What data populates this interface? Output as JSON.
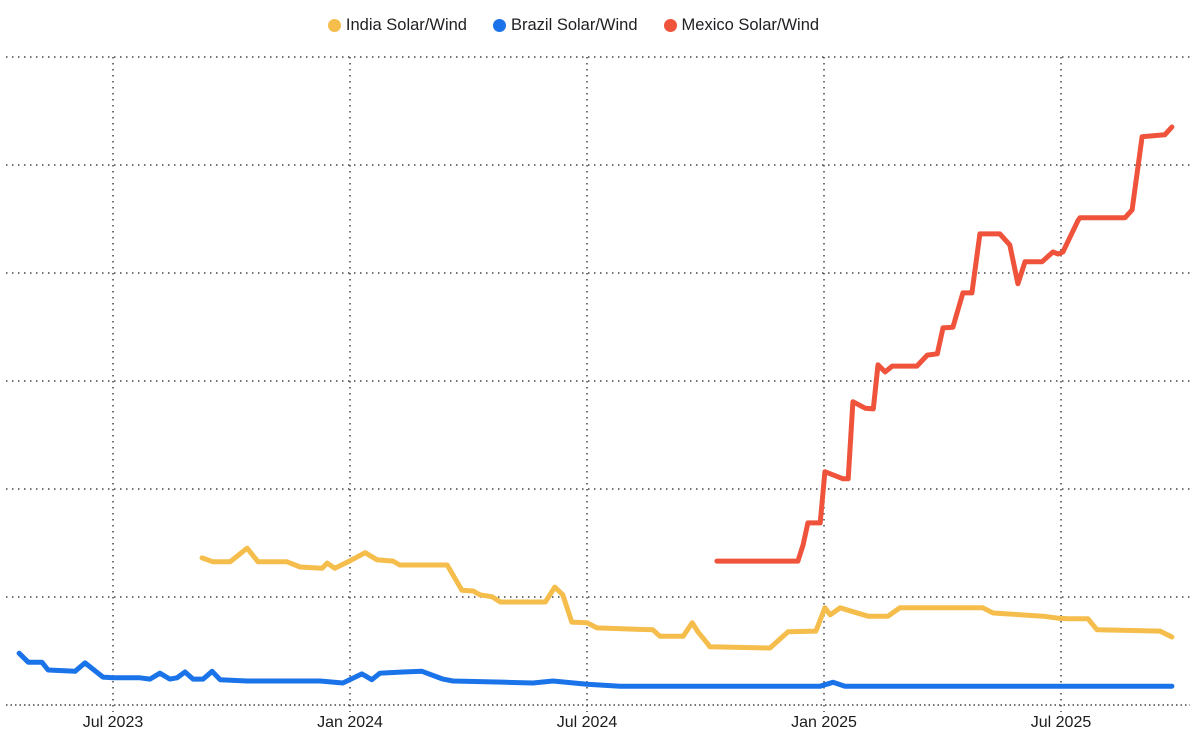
{
  "chart_data": {
    "type": "line",
    "title": "",
    "xlabel": "",
    "ylabel": "",
    "ylim": [
      0,
      100
    ],
    "y_axis_labels_visible": false,
    "grid": "dotted",
    "grid_color": "#474747",
    "tick_label_color": "#1c1c1c",
    "legend_position": "top-center",
    "x_ticks": [
      {
        "t": 2023.5,
        "label": "Jul 2023"
      },
      {
        "t": 2024.0,
        "label": "Jan 2024"
      },
      {
        "t": 2024.5,
        "label": "Jul 2024"
      },
      {
        "t": 2025.0,
        "label": "Jan 2025"
      },
      {
        "t": 2025.5,
        "label": "Jul 2025"
      }
    ],
    "series": [
      {
        "name": "India Solar/Wind",
        "color": "#F5BD4B",
        "points": [
          [
            2023.688,
            22.7
          ],
          [
            2023.711,
            22.1
          ],
          [
            2023.747,
            22.1
          ],
          [
            2023.783,
            24.2
          ],
          [
            2023.806,
            22.1
          ],
          [
            2023.867,
            22.1
          ],
          [
            2023.895,
            21.3
          ],
          [
            2023.941,
            21.1
          ],
          [
            2023.952,
            21.9
          ],
          [
            2023.968,
            21.1
          ],
          [
            2023.996,
            22.1
          ],
          [
            2024.032,
            23.5
          ],
          [
            2024.057,
            22.4
          ],
          [
            2024.091,
            22.2
          ],
          [
            2024.105,
            21.6
          ],
          [
            2024.205,
            21.6
          ],
          [
            2024.236,
            17.7
          ],
          [
            2024.26,
            17.6
          ],
          [
            2024.274,
            17.0
          ],
          [
            2024.3,
            16.7
          ],
          [
            2024.317,
            15.9
          ],
          [
            2024.412,
            15.9
          ],
          [
            2024.432,
            18.2
          ],
          [
            2024.449,
            17.0
          ],
          [
            2024.468,
            12.8
          ],
          [
            2024.5,
            12.7
          ],
          [
            2024.521,
            11.9
          ],
          [
            2024.639,
            11.6
          ],
          [
            2024.654,
            10.6
          ],
          [
            2024.703,
            10.6
          ],
          [
            2024.722,
            12.7
          ],
          [
            2024.734,
            11.3
          ],
          [
            2024.753,
            9.6
          ],
          [
            2024.759,
            9.0
          ],
          [
            2024.886,
            8.8
          ],
          [
            2024.924,
            11.3
          ],
          [
            2024.983,
            11.4
          ],
          [
            2025.002,
            15.0
          ],
          [
            2025.013,
            13.9
          ],
          [
            2025.034,
            15.0
          ],
          [
            2025.061,
            14.4
          ],
          [
            2025.093,
            13.7
          ],
          [
            2025.135,
            13.7
          ],
          [
            2025.16,
            15.0
          ],
          [
            2025.335,
            15.0
          ],
          [
            2025.357,
            14.2
          ],
          [
            2025.462,
            13.7
          ],
          [
            2025.494,
            13.4
          ],
          [
            2025.515,
            13.3
          ],
          [
            2025.557,
            13.3
          ],
          [
            2025.576,
            11.6
          ],
          [
            2025.709,
            11.4
          ],
          [
            2025.734,
            10.5
          ]
        ]
      },
      {
        "name": "Brazil Solar/Wind",
        "color": "#1A73E8",
        "points": [
          [
            2023.302,
            8.0
          ],
          [
            2023.321,
            6.6
          ],
          [
            2023.35,
            6.6
          ],
          [
            2023.363,
            5.4
          ],
          [
            2023.42,
            5.2
          ],
          [
            2023.441,
            6.5
          ],
          [
            2023.479,
            4.3
          ],
          [
            2023.5,
            4.2
          ],
          [
            2023.557,
            4.2
          ],
          [
            2023.578,
            4.0
          ],
          [
            2023.599,
            4.9
          ],
          [
            2023.62,
            4.0
          ],
          [
            2023.635,
            4.2
          ],
          [
            2023.652,
            5.1
          ],
          [
            2023.669,
            4.0
          ],
          [
            2023.69,
            4.0
          ],
          [
            2023.709,
            5.2
          ],
          [
            2023.726,
            3.9
          ],
          [
            2023.783,
            3.7
          ],
          [
            2023.937,
            3.7
          ],
          [
            2023.985,
            3.4
          ],
          [
            2024.025,
            4.8
          ],
          [
            2024.046,
            3.9
          ],
          [
            2024.063,
            4.9
          ],
          [
            2024.112,
            5.1
          ],
          [
            2024.152,
            5.2
          ],
          [
            2024.196,
            4.0
          ],
          [
            2024.217,
            3.7
          ],
          [
            2024.331,
            3.5
          ],
          [
            2024.386,
            3.4
          ],
          [
            2024.428,
            3.7
          ],
          [
            2024.5,
            3.2
          ],
          [
            2024.57,
            2.9
          ],
          [
            2024.992,
            2.9
          ],
          [
            2025.019,
            3.5
          ],
          [
            2025.044,
            2.9
          ],
          [
            2025.734,
            2.9
          ]
        ]
      },
      {
        "name": "Mexico Solar/Wind",
        "color": "#F0533B",
        "points": [
          [
            2024.774,
            22.2
          ],
          [
            2024.945,
            22.2
          ],
          [
            2024.956,
            24.7
          ],
          [
            2024.966,
            28.1
          ],
          [
            2024.992,
            28.1
          ],
          [
            2025.002,
            36.0
          ],
          [
            2025.04,
            34.9
          ],
          [
            2025.051,
            34.9
          ],
          [
            2025.061,
            46.8
          ],
          [
            2025.087,
            45.8
          ],
          [
            2025.104,
            45.7
          ],
          [
            2025.114,
            52.5
          ],
          [
            2025.129,
            51.4
          ],
          [
            2025.144,
            52.3
          ],
          [
            2025.196,
            52.3
          ],
          [
            2025.218,
            54.0
          ],
          [
            2025.239,
            54.2
          ],
          [
            2025.251,
            58.2
          ],
          [
            2025.272,
            58.3
          ],
          [
            2025.293,
            63.6
          ],
          [
            2025.312,
            63.6
          ],
          [
            2025.329,
            72.7
          ],
          [
            2025.371,
            72.7
          ],
          [
            2025.392,
            71.0
          ],
          [
            2025.409,
            65.0
          ],
          [
            2025.424,
            68.4
          ],
          [
            2025.46,
            68.4
          ],
          [
            2025.483,
            69.9
          ],
          [
            2025.494,
            69.6
          ],
          [
            2025.504,
            69.9
          ],
          [
            2025.536,
            74.8
          ],
          [
            2025.54,
            75.2
          ],
          [
            2025.635,
            75.2
          ],
          [
            2025.65,
            76.4
          ],
          [
            2025.671,
            87.7
          ],
          [
            2025.719,
            88.0
          ],
          [
            2025.734,
            89.2
          ]
        ]
      }
    ]
  }
}
